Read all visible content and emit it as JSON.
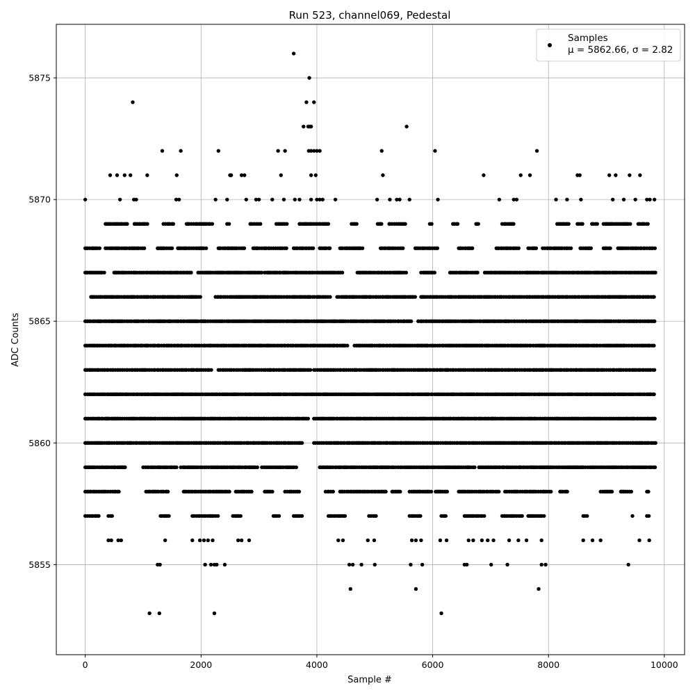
{
  "chart_data": {
    "type": "scatter",
    "title": "Run 523, channel069, Pedestal",
    "xlabel": "Sample #",
    "ylabel": "ADC Counts",
    "xlim": [
      -500,
      10350
    ],
    "ylim": [
      5851.3,
      5877.2
    ],
    "xticks": [
      0,
      2000,
      4000,
      6000,
      8000,
      10000
    ],
    "yticks": [
      5855,
      5860,
      5865,
      5870,
      5875
    ],
    "grid": true,
    "legend_position": "top-right",
    "marker_color": "#000000",
    "series": [
      {
        "name": "Samples",
        "stats_label": "μ = 5862.66, σ = 2.82",
        "dense_bands": [
          {
            "y": 5857,
            "x_ranges": [
              [
                0,
                250
              ],
              [
                400,
                480
              ],
              [
                1300,
                1450
              ],
              [
                1850,
                2300
              ],
              [
                2550,
                2700
              ],
              [
                3250,
                3350
              ],
              [
                3600,
                3750
              ],
              [
                4200,
                4500
              ],
              [
                4900,
                5050
              ],
              [
                5600,
                5800
              ],
              [
                6150,
                6250
              ],
              [
                6550,
                6900
              ],
              [
                7200,
                7550
              ],
              [
                7650,
                7950
              ],
              [
                8600,
                8700
              ],
              [
                9450,
                9450
              ],
              [
                9700,
                9750
              ]
            ]
          },
          {
            "y": 5858,
            "x_ranges": [
              [
                0,
                600
              ],
              [
                1050,
                1450
              ],
              [
                1700,
                2500
              ],
              [
                2600,
                2900
              ],
              [
                3100,
                3250
              ],
              [
                3450,
                3700
              ],
              [
                4150,
                4300
              ],
              [
                4400,
                5200
              ],
              [
                5300,
                5450
              ],
              [
                5600,
                6000
              ],
              [
                6050,
                6250
              ],
              [
                6450,
                7150
              ],
              [
                7250,
                8050
              ],
              [
                8200,
                8350
              ],
              [
                8900,
                9100
              ],
              [
                9250,
                9450
              ],
              [
                9700,
                9750
              ]
            ]
          },
          {
            "y": 5859,
            "x_ranges": [
              [
                0,
                700
              ],
              [
                1000,
                1600
              ],
              [
                1650,
                3000
              ],
              [
                3050,
                3650
              ],
              [
                4050,
                6750
              ],
              [
                6800,
                9850
              ]
            ]
          },
          {
            "y": 5860,
            "x_ranges": [
              [
                0,
                3750
              ],
              [
                3950,
                9850
              ]
            ]
          },
          {
            "y": 5861,
            "x_ranges": [
              [
                0,
                3850
              ],
              [
                3950,
                9850
              ]
            ]
          },
          {
            "y": 5862,
            "x_ranges": [
              [
                0,
                9850
              ]
            ]
          },
          {
            "y": 5863,
            "x_ranges": [
              [
                0,
                2200
              ],
              [
                2300,
                3900
              ],
              [
                3950,
                9850
              ]
            ]
          },
          {
            "y": 5864,
            "x_ranges": [
              [
                0,
                4550
              ],
              [
                4650,
                9850
              ]
            ]
          },
          {
            "y": 5865,
            "x_ranges": [
              [
                0,
                5650
              ],
              [
                5750,
                9850
              ]
            ]
          },
          {
            "y": 5866,
            "x_ranges": [
              [
                100,
                2000
              ],
              [
                2250,
                4250
              ],
              [
                4350,
                5700
              ],
              [
                5800,
                9850
              ]
            ]
          },
          {
            "y": 5867,
            "x_ranges": [
              [
                0,
                350
              ],
              [
                500,
                1850
              ],
              [
                1950,
                3050
              ],
              [
                3100,
                4450
              ],
              [
                4700,
                5550
              ],
              [
                5800,
                6050
              ],
              [
                6300,
                6800
              ],
              [
                6900,
                9850
              ]
            ]
          },
          {
            "y": 5868,
            "x_ranges": [
              [
                0,
                250
              ],
              [
                350,
                1050
              ],
              [
                1250,
                1500
              ],
              [
                1600,
                2100
              ],
              [
                2300,
                2750
              ],
              [
                2900,
                3500
              ],
              [
                3600,
                3950
              ],
              [
                4050,
                4250
              ],
              [
                4400,
                4800
              ],
              [
                5100,
                5500
              ],
              [
                5700,
                6100
              ],
              [
                6450,
                6700
              ],
              [
                7100,
                7500
              ],
              [
                7650,
                7800
              ],
              [
                7900,
                8400
              ],
              [
                8550,
                8750
              ],
              [
                8950,
                9100
              ],
              [
                9200,
                9850
              ]
            ]
          },
          {
            "y": 5869,
            "x_ranges": [
              [
                350,
                750
              ],
              [
                850,
                1100
              ],
              [
                1350,
                1550
              ],
              [
                1750,
                2200
              ],
              [
                2450,
                2500
              ],
              [
                2850,
                3050
              ],
              [
                3300,
                3500
              ],
              [
                3700,
                4200
              ],
              [
                4600,
                4700
              ],
              [
                5050,
                5150
              ],
              [
                5250,
                5550
              ],
              [
                5950,
                6000
              ],
              [
                6350,
                6450
              ],
              [
                6750,
                6800
              ],
              [
                7200,
                7400
              ],
              [
                8150,
                8350
              ],
              [
                8500,
                8600
              ],
              [
                8750,
                8850
              ],
              [
                8950,
                9450
              ],
              [
                9550,
                9750
              ]
            ]
          }
        ],
        "points": [
          [
            0,
            5870
          ],
          [
            820,
            5874
          ],
          [
            430,
            5871
          ],
          [
            550,
            5871
          ],
          [
            680,
            5871
          ],
          [
            780,
            5871
          ],
          [
            1070,
            5871
          ],
          [
            600,
            5870
          ],
          [
            840,
            5870
          ],
          [
            880,
            5870
          ],
          [
            1330,
            5872
          ],
          [
            1580,
            5871
          ],
          [
            1570,
            5870
          ],
          [
            1620,
            5870
          ],
          [
            1650,
            5872
          ],
          [
            2300,
            5872
          ],
          [
            2250,
            5870
          ],
          [
            2450,
            5870
          ],
          [
            2500,
            5871
          ],
          [
            2520,
            5871
          ],
          [
            2700,
            5871
          ],
          [
            2750,
            5871
          ],
          [
            2780,
            5870
          ],
          [
            2950,
            5870
          ],
          [
            3000,
            5870
          ],
          [
            3230,
            5870
          ],
          [
            3330,
            5872
          ],
          [
            3380,
            5871
          ],
          [
            3450,
            5872
          ],
          [
            3430,
            5870
          ],
          [
            3600,
            5876
          ],
          [
            3620,
            5870
          ],
          [
            3700,
            5870
          ],
          [
            3770,
            5873
          ],
          [
            3820,
            5874
          ],
          [
            3850,
            5873
          ],
          [
            3870,
            5875
          ],
          [
            3880,
            5873
          ],
          [
            3900,
            5873
          ],
          [
            3860,
            5872
          ],
          [
            3900,
            5872
          ],
          [
            3950,
            5872
          ],
          [
            4000,
            5872
          ],
          [
            4050,
            5872
          ],
          [
            3950,
            5874
          ],
          [
            3900,
            5871
          ],
          [
            3980,
            5871
          ],
          [
            3900,
            5870
          ],
          [
            4000,
            5870
          ],
          [
            4050,
            5870
          ],
          [
            4100,
            5870
          ],
          [
            4320,
            5870
          ],
          [
            5040,
            5870
          ],
          [
            5120,
            5872
          ],
          [
            5140,
            5871
          ],
          [
            5260,
            5870
          ],
          [
            5380,
            5870
          ],
          [
            5430,
            5870
          ],
          [
            5550,
            5873
          ],
          [
            5600,
            5870
          ],
          [
            6040,
            5872
          ],
          [
            6090,
            5870
          ],
          [
            6880,
            5871
          ],
          [
            7150,
            5870
          ],
          [
            7400,
            5870
          ],
          [
            7450,
            5870
          ],
          [
            7520,
            5871
          ],
          [
            7680,
            5871
          ],
          [
            7800,
            5872
          ],
          [
            8130,
            5870
          ],
          [
            8320,
            5870
          ],
          [
            8500,
            5871
          ],
          [
            8540,
            5871
          ],
          [
            8560,
            5870
          ],
          [
            9050,
            5871
          ],
          [
            9110,
            5870
          ],
          [
            9160,
            5871
          ],
          [
            9300,
            5870
          ],
          [
            9400,
            5871
          ],
          [
            9500,
            5870
          ],
          [
            9580,
            5871
          ],
          [
            9700,
            5870
          ],
          [
            9750,
            5870
          ],
          [
            9830,
            5870
          ],
          [
            400,
            5856
          ],
          [
            450,
            5856
          ],
          [
            570,
            5856
          ],
          [
            620,
            5856
          ],
          [
            1380,
            5856
          ],
          [
            1850,
            5856
          ],
          [
            1980,
            5856
          ],
          [
            2050,
            5856
          ],
          [
            2120,
            5856
          ],
          [
            2200,
            5856
          ],
          [
            2640,
            5856
          ],
          [
            2700,
            5856
          ],
          [
            2830,
            5856
          ],
          [
            4370,
            5856
          ],
          [
            4450,
            5856
          ],
          [
            4880,
            5856
          ],
          [
            4990,
            5856
          ],
          [
            5640,
            5856
          ],
          [
            5710,
            5856
          ],
          [
            5800,
            5856
          ],
          [
            6130,
            5856
          ],
          [
            6240,
            5856
          ],
          [
            6620,
            5856
          ],
          [
            6700,
            5856
          ],
          [
            6850,
            5856
          ],
          [
            6950,
            5856
          ],
          [
            7050,
            5856
          ],
          [
            7320,
            5856
          ],
          [
            7480,
            5856
          ],
          [
            7620,
            5856
          ],
          [
            7880,
            5856
          ],
          [
            8600,
            5856
          ],
          [
            8760,
            5856
          ],
          [
            8900,
            5856
          ],
          [
            9570,
            5856
          ],
          [
            9740,
            5856
          ],
          [
            1250,
            5855
          ],
          [
            1290,
            5855
          ],
          [
            2070,
            5855
          ],
          [
            2170,
            5855
          ],
          [
            2230,
            5855
          ],
          [
            2270,
            5855
          ],
          [
            2410,
            5855
          ],
          [
            4560,
            5855
          ],
          [
            4620,
            5855
          ],
          [
            4770,
            5855
          ],
          [
            5000,
            5855
          ],
          [
            5620,
            5855
          ],
          [
            5820,
            5855
          ],
          [
            6550,
            5855
          ],
          [
            6590,
            5855
          ],
          [
            7010,
            5855
          ],
          [
            7290,
            5855
          ],
          [
            7880,
            5855
          ],
          [
            7950,
            5855
          ],
          [
            9380,
            5855
          ],
          [
            1110,
            5853
          ],
          [
            1280,
            5853
          ],
          [
            2230,
            5853
          ],
          [
            6150,
            5853
          ],
          [
            4580,
            5854
          ],
          [
            5710,
            5854
          ],
          [
            7830,
            5854
          ]
        ]
      }
    ]
  }
}
